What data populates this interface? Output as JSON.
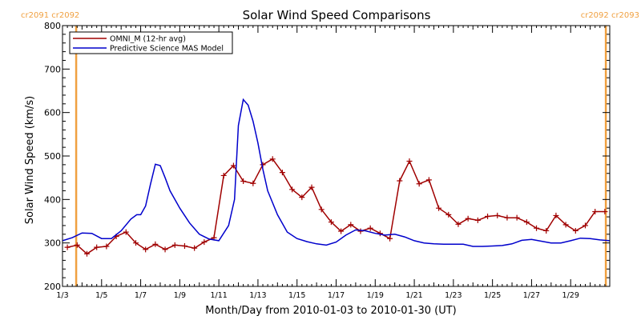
{
  "chart_data": {
    "type": "line",
    "title": "Solar Wind Speed Comparisons",
    "xlabel": "Month/Day from 2010-01-03 to 2010-01-30 (UT)",
    "ylabel": "Solar Wind Speed (km/s)",
    "xlim": [
      0,
      28
    ],
    "ylim": [
      200,
      800
    ],
    "x_unit": "days since 2010-01-03 00:00 UT",
    "x_ticks": [
      {
        "x": 0,
        "label": "1/3"
      },
      {
        "x": 2,
        "label": "1/5"
      },
      {
        "x": 4,
        "label": "1/7"
      },
      {
        "x": 6,
        "label": "1/9"
      },
      {
        "x": 8,
        "label": "1/11"
      },
      {
        "x": 10,
        "label": "1/13"
      },
      {
        "x": 12,
        "label": "1/15"
      },
      {
        "x": 14,
        "label": "1/17"
      },
      {
        "x": 16,
        "label": "1/19"
      },
      {
        "x": 18,
        "label": "1/21"
      },
      {
        "x": 20,
        "label": "1/23"
      },
      {
        "x": 22,
        "label": "1/25"
      },
      {
        "x": 24,
        "label": "1/27"
      },
      {
        "x": 26,
        "label": "1/29"
      }
    ],
    "y_ticks": [
      200,
      300,
      400,
      500,
      600,
      700,
      800
    ],
    "legend_position": "top-left",
    "rotation_markers": [
      {
        "x": 0.7,
        "labels": [
          "cr2091",
          "cr2092"
        ],
        "color": "#f0a040"
      },
      {
        "x": 27.8,
        "labels": [
          "cr2092",
          "cr2093"
        ],
        "color": "#f0a040"
      }
    ],
    "series": [
      {
        "name": "OMNI_M (12-hr avg)",
        "color": "#a00000",
        "markers": "plus",
        "x": [
          0.25,
          0.75,
          1.25,
          1.75,
          2.25,
          2.75,
          3.25,
          3.75,
          4.25,
          4.75,
          5.25,
          5.75,
          6.25,
          6.75,
          7.25,
          7.75,
          8.25,
          8.75,
          9.25,
          9.75,
          10.25,
          10.75,
          11.25,
          11.75,
          12.25,
          12.75,
          13.25,
          13.75,
          14.25,
          14.75,
          15.25,
          15.75,
          16.25,
          16.75,
          17.25,
          17.75,
          18.25,
          18.75,
          19.25,
          19.75,
          20.25,
          20.75,
          21.25,
          21.75,
          22.25,
          22.75,
          23.25,
          23.75,
          24.25,
          24.75,
          25.25,
          25.75,
          26.25,
          26.75,
          27.25,
          27.75
        ],
        "values": [
          290,
          295,
          275,
          290,
          292,
          315,
          325,
          300,
          285,
          297,
          285,
          295,
          293,
          288,
          302,
          312,
          455,
          478,
          442,
          437,
          480,
          493,
          462,
          423,
          405,
          428,
          377,
          348,
          327,
          342,
          327,
          334,
          322,
          310,
          443,
          488,
          436,
          445,
          380,
          365,
          343,
          356,
          352,
          361,
          363,
          358,
          358,
          348,
          334,
          328,
          363,
          342,
          328,
          340,
          372,
          372
        ]
      },
      {
        "name": "Predictive Science MAS Model",
        "color": "#0000cc",
        "markers": "none",
        "x": [
          0,
          0.5,
          1,
          1.5,
          2,
          2.5,
          3,
          3.5,
          3.8,
          4,
          4.25,
          4.5,
          4.75,
          5,
          5.25,
          5.5,
          6,
          6.5,
          7,
          7.5,
          8,
          8.5,
          8.8,
          9,
          9.25,
          9.5,
          9.75,
          10,
          10.25,
          10.5,
          11,
          11.5,
          12,
          12.5,
          13,
          13.5,
          14,
          14.5,
          15,
          15.5,
          16,
          16.5,
          17,
          17.5,
          18,
          18.5,
          19,
          19.5,
          20,
          20.5,
          21,
          21.5,
          22,
          22.5,
          23,
          23.5,
          24,
          24.5,
          25,
          25.5,
          26,
          26.5,
          27,
          27.5,
          28
        ],
        "values": [
          305,
          312,
          323,
          322,
          310,
          310,
          328,
          355,
          365,
          365,
          385,
          435,
          481,
          478,
          450,
          420,
          380,
          346,
          320,
          309,
          305,
          340,
          400,
          570,
          630,
          617,
          580,
          530,
          470,
          420,
          365,
          325,
          310,
          303,
          298,
          295,
          302,
          318,
          330,
          328,
          322,
          318,
          320,
          314,
          305,
          300,
          298,
          297,
          297,
          297,
          292,
          292,
          293,
          294,
          298,
          306,
          308,
          304,
          300,
          300,
          305,
          311,
          310,
          307,
          305
        ]
      }
    ]
  }
}
